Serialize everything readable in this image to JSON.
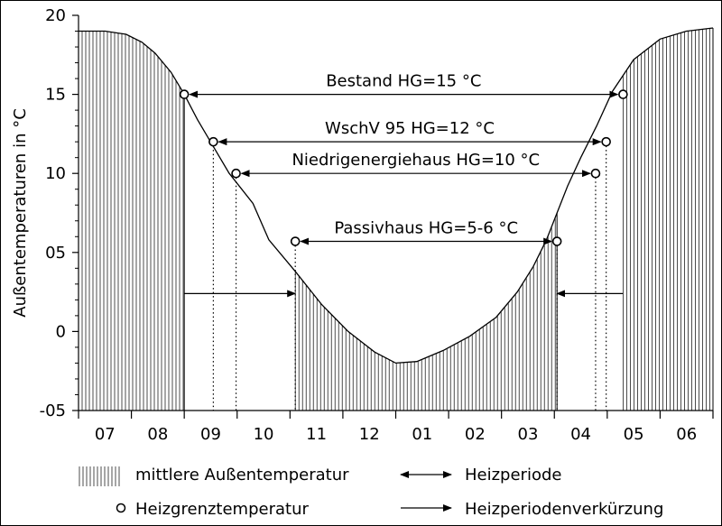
{
  "chart_data": {
    "type": "area",
    "ylabel": "Außentemperaturen in °C",
    "ylim": [
      -5,
      20
    ],
    "yticks": [
      "20",
      "15",
      "10",
      "05",
      "0",
      "-05"
    ],
    "yticks_values": [
      20,
      15,
      10,
      5,
      0,
      -5
    ],
    "xlim": [
      0,
      12
    ],
    "categories": [
      "07",
      "08",
      "09",
      "10",
      "11",
      "12",
      "01",
      "02",
      "03",
      "04",
      "05",
      "06"
    ],
    "grid": false,
    "series": [
      {
        "name": "mittlere Außentemperatur",
        "x": [
          0,
          0.5,
          0.9,
          1.2,
          1.45,
          1.75,
          2.0,
          2.25,
          2.55,
          2.85,
          3.3,
          3.6,
          4.1,
          4.6,
          5.1,
          5.6,
          6.0,
          6.4,
          6.9,
          7.4,
          7.9,
          8.3,
          8.6,
          8.85,
          9.05,
          9.25,
          9.5,
          9.8,
          10.1,
          10.5,
          11.0,
          11.5,
          12.0
        ],
        "y": [
          19.0,
          19.0,
          18.8,
          18.3,
          17.6,
          16.4,
          15.0,
          13.4,
          11.7,
          10.0,
          8.1,
          5.8,
          3.8,
          1.7,
          0.0,
          -1.3,
          -2.0,
          -1.9,
          -1.2,
          -0.3,
          0.9,
          2.5,
          4.1,
          5.8,
          7.5,
          9.2,
          11.0,
          13.0,
          15.2,
          17.2,
          18.5,
          19.0,
          19.2
        ]
      }
    ],
    "hatched_intervals": [
      [
        0,
        2.0
      ],
      [
        4.1,
        9.05
      ],
      [
        10.3,
        12.0
      ]
    ],
    "heating_periods": [
      {
        "label": "Bestand HG=15 °C",
        "x_start": 2.0,
        "x_end": 10.3,
        "y": 15
      },
      {
        "label": "WschV 95 HG=12 °C",
        "x_start": 2.55,
        "x_end": 9.98,
        "y": 12
      },
      {
        "label": "Niedrigenergiehaus HG=10 °C",
        "x_start": 2.98,
        "x_end": 9.78,
        "y": 10
      },
      {
        "label": "Passivhaus HG=5-6 °C",
        "x_start": 4.1,
        "x_end": 9.05,
        "y": 5.7
      }
    ],
    "shortening_arrows": [
      {
        "x_from": 2.0,
        "x_to": 4.1,
        "y": 2.4
      },
      {
        "x_from": 10.3,
        "x_to": 9.05,
        "y": 2.4
      }
    ],
    "dotted_drops": [
      {
        "x": 2.55,
        "y_top": 12
      },
      {
        "x": 2.98,
        "y_top": 10
      },
      {
        "x": 4.1,
        "y_top": 5.7
      },
      {
        "x": 9.05,
        "y_top": 5.7
      },
      {
        "x": 9.78,
        "y_top": 10
      },
      {
        "x": 9.98,
        "y_top": 12
      }
    ]
  },
  "legend": {
    "area_label": "mittlere Außentemperatur",
    "circle_label": "Heizgrenztemperatur",
    "double_arrow_label": "Heizperiode",
    "single_arrow_label": "Heizperiodenverkürzung"
  }
}
